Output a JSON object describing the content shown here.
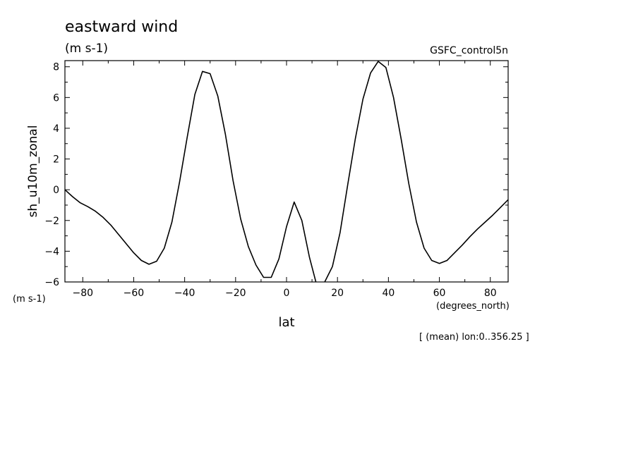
{
  "chart_data": {
    "type": "line",
    "title": "eastward wind",
    "subtitle": "(m s-1)",
    "dataset_label": "GSFC_control5n",
    "ylabel": "sh_u10m_zonal",
    "yunits": "(m s-1)",
    "xlabel": "lat",
    "xunits": "(degrees_north)",
    "footnote": "[ (mean) lon:0..356.25 ]",
    "xlim": [
      -87,
      87
    ],
    "ylim": [
      -6,
      8.4
    ],
    "xticks": [
      -80,
      -60,
      -40,
      -20,
      0,
      20,
      40,
      60,
      80
    ],
    "yticks": [
      -6,
      -4,
      -2,
      0,
      2,
      4,
      6,
      8
    ],
    "line_color": "#000000",
    "series": [
      {
        "x": [
          -87,
          -84,
          -81,
          -78,
          -75,
          -72,
          -69,
          -66,
          -63,
          -60,
          -57,
          -54,
          -51,
          -48,
          -45,
          -42,
          -39,
          -36,
          -33,
          -30,
          -27,
          -24,
          -21,
          -18,
          -15,
          -12,
          -9,
          -6,
          -3,
          0,
          3,
          6,
          9,
          12,
          15,
          18,
          21,
          24,
          27,
          30,
          33,
          36,
          39,
          42,
          45,
          48,
          51,
          54,
          57,
          60,
          63,
          66,
          69,
          72,
          75,
          78,
          81,
          84,
          87
        ],
        "y": [
          0.0,
          -0.45,
          -0.85,
          -1.1,
          -1.4,
          -1.8,
          -2.3,
          -2.9,
          -3.5,
          -4.1,
          -4.6,
          -4.85,
          -4.65,
          -3.8,
          -2.1,
          0.5,
          3.4,
          6.2,
          7.7,
          7.55,
          6.1,
          3.6,
          0.6,
          -1.9,
          -3.7,
          -4.9,
          -5.7,
          -5.7,
          -4.5,
          -2.4,
          -0.8,
          -2.0,
          -4.4,
          -6.3,
          -6.0,
          -5.0,
          -2.8,
          0.3,
          3.3,
          5.9,
          7.6,
          8.35,
          7.95,
          6.0,
          3.3,
          0.4,
          -2.1,
          -3.8,
          -4.6,
          -4.8,
          -4.6,
          -4.1,
          -3.6,
          -3.05,
          -2.55,
          -2.1,
          -1.65,
          -1.15,
          -0.65
        ]
      }
    ]
  }
}
